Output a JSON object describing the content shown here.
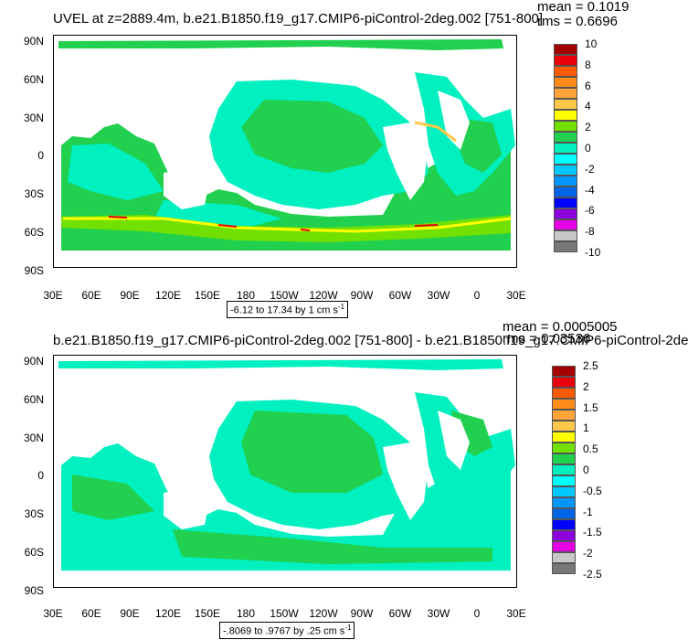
{
  "chart_data": [
    {
      "type": "heatmap",
      "title": "UVEL at z=2889.4m, b.e21.B1850.f19_g17.CMIP6-piControl-2deg.002 [751-800]",
      "stat_mean": "mean = 0.1019",
      "stat_rms": "rms = 0.6696",
      "y_ticks": [
        "90N",
        "60N",
        "30N",
        "0",
        "30S",
        "60S",
        "90S"
      ],
      "x_ticks": [
        "30E",
        "60E",
        "90E",
        "120E",
        "150E",
        "180",
        "150W",
        "120W",
        "90W",
        "60W",
        "30W",
        "0",
        "30E"
      ],
      "footnote": "-6.12 to 17.34 by 1 cm s",
      "footnote_sup": "-1",
      "colorbar_labels": [
        "10",
        "8",
        "6",
        "4",
        "2",
        "0",
        "-2",
        "-4",
        "-6",
        "-8",
        "-10"
      ],
      "colorbar_colors": [
        "#a50000",
        "#e8000a",
        "#ff5a00",
        "#ff8c1a",
        "#ffa53a",
        "#ffc84a",
        "#ffff00",
        "#72e000",
        "#20d04e",
        "#00f0c0",
        "#00ffff",
        "#00c8ff",
        "#0096ff",
        "#0064e6",
        "#0000ff",
        "#8c00dc",
        "#e600e6",
        "#c8c8c8",
        "#787878"
      ]
    },
    {
      "type": "heatmap",
      "title": "b.e21.B1850.f19_g17.CMIP6-piControl-2deg.002 [751-800] - b.e21.B1850.f19_g17.CMIP6-piControl-2de",
      "stat_mean": "mean = 0.0005005",
      "stat_rms": "rms = 0.03536",
      "y_ticks": [
        "90N",
        "60N",
        "30N",
        "0",
        "30S",
        "60S",
        "90S"
      ],
      "x_ticks": [
        "30E",
        "60E",
        "90E",
        "120E",
        "150E",
        "180",
        "150W",
        "120W",
        "90W",
        "60W",
        "30W",
        "0",
        "30E"
      ],
      "footnote": "-.8069 to .9767 by .25 cm s",
      "footnote_sup": "-1",
      "colorbar_labels": [
        "2.5",
        "2",
        "1.5",
        "1",
        "0.5",
        "0",
        "-0.5",
        "-1",
        "-1.5",
        "-2",
        "-2.5"
      ],
      "colorbar_colors": [
        "#a50000",
        "#e8000a",
        "#ff5a00",
        "#ff8c1a",
        "#ffa53a",
        "#ffc84a",
        "#ffff00",
        "#72e000",
        "#20d04e",
        "#00f0c0",
        "#00ffff",
        "#00c8ff",
        "#0096ff",
        "#0064e6",
        "#0000ff",
        "#8c00dc",
        "#e600e6",
        "#c8c8c8",
        "#787878"
      ]
    }
  ]
}
